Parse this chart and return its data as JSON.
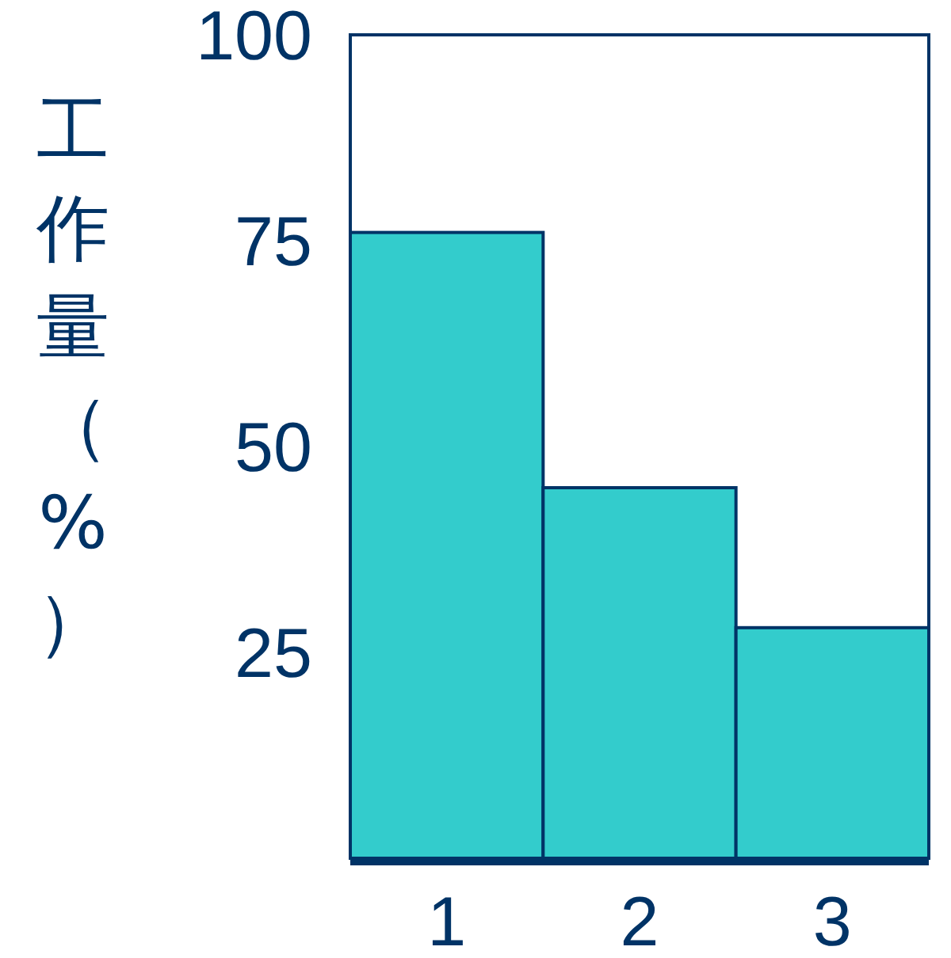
{
  "chart_data": {
    "type": "bar",
    "ylabel": "工作量（%）",
    "categories": [
      "1",
      "2",
      "3"
    ],
    "values": [
      76,
      45,
      28
    ],
    "color": "#33cccc",
    "ylim": [
      0,
      100
    ],
    "yticks": [
      25,
      50,
      75,
      100
    ],
    "grid": false
  }
}
